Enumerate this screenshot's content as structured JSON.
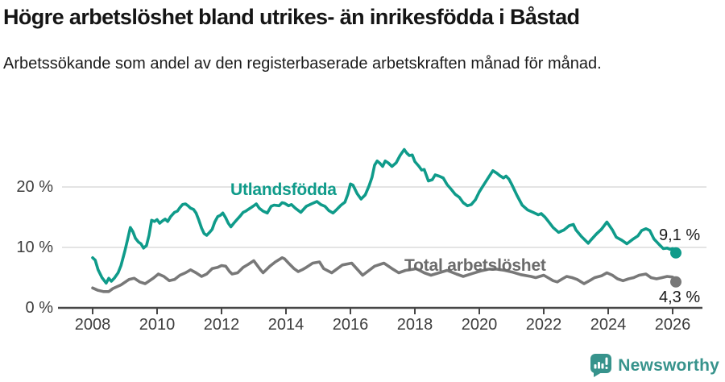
{
  "header": {
    "title": "Högre arbetslöshet bland utrikes- än inrikesfödda i Båstad",
    "subtitle": "Arbetssökande som andel av den registerbaserade arbetskraften månad för månad."
  },
  "footer": {
    "brand": "Newsworthy"
  },
  "colors": {
    "teal": "#0f9b8a",
    "gray": "#787878",
    "gray_label": "#6b6b6b",
    "axis": "#474747",
    "grid": "#dcdcdc",
    "text": "#1a1a1a",
    "tick_text": "#3d3d3d",
    "logo_teal": "#37938c"
  },
  "chart_data": {
    "type": "line",
    "title": "Högre arbetslöshet bland utrikes- än inrikesfödda i Båstad",
    "subtitle": "Arbetssökande som andel av den registerbaserade arbetskraften månad för månad.",
    "xlabel": "",
    "ylabel": "",
    "grid": "horizontal",
    "legend_position": "inline-labels",
    "x_axis": {
      "min": 2008,
      "max": 2026.3,
      "ticks": [
        2008,
        2010,
        2012,
        2014,
        2016,
        2018,
        2020,
        2022,
        2024,
        2026
      ]
    },
    "y_axis": {
      "unit": "%",
      "range": [
        0,
        27
      ],
      "ticks": [
        0,
        10,
        20
      ],
      "tick_labels": [
        "0 %",
        "10 %",
        "20 %"
      ]
    },
    "series": [
      {
        "name": "Utlandsfödda",
        "label_text": "Utlandsfödda",
        "color": "#0f9b8a",
        "end_label": "9,1 %",
        "end_value": 9.1,
        "points": [
          [
            2008.0,
            8.3
          ],
          [
            2008.08,
            7.9
          ],
          [
            2008.17,
            6.3
          ],
          [
            2008.29,
            5.0
          ],
          [
            2008.42,
            4.1
          ],
          [
            2008.5,
            4.9
          ],
          [
            2008.58,
            4.4
          ],
          [
            2008.67,
            4.9
          ],
          [
            2008.79,
            5.8
          ],
          [
            2008.88,
            7.0
          ],
          [
            2009.0,
            9.4
          ],
          [
            2009.08,
            11.2
          ],
          [
            2009.17,
            13.3
          ],
          [
            2009.25,
            12.6
          ],
          [
            2009.33,
            11.5
          ],
          [
            2009.42,
            10.9
          ],
          [
            2009.5,
            10.6
          ],
          [
            2009.58,
            9.9
          ],
          [
            2009.67,
            10.3
          ],
          [
            2009.75,
            12.0
          ],
          [
            2009.83,
            14.5
          ],
          [
            2009.92,
            14.3
          ],
          [
            2010.0,
            14.6
          ],
          [
            2010.08,
            14.0
          ],
          [
            2010.17,
            14.4
          ],
          [
            2010.25,
            14.7
          ],
          [
            2010.33,
            14.3
          ],
          [
            2010.42,
            15.1
          ],
          [
            2010.54,
            15.8
          ],
          [
            2010.63,
            16.0
          ],
          [
            2010.71,
            16.6
          ],
          [
            2010.79,
            17.1
          ],
          [
            2010.88,
            17.2
          ],
          [
            2010.96,
            16.9
          ],
          [
            2011.04,
            16.5
          ],
          [
            2011.13,
            16.3
          ],
          [
            2011.21,
            15.7
          ],
          [
            2011.29,
            14.6
          ],
          [
            2011.38,
            13.2
          ],
          [
            2011.46,
            12.3
          ],
          [
            2011.54,
            12.0
          ],
          [
            2011.63,
            12.5
          ],
          [
            2011.71,
            13.0
          ],
          [
            2011.79,
            14.2
          ],
          [
            2011.88,
            15.1
          ],
          [
            2011.96,
            15.3
          ],
          [
            2012.04,
            15.7
          ],
          [
            2012.13,
            14.9
          ],
          [
            2012.21,
            14.0
          ],
          [
            2012.29,
            13.4
          ],
          [
            2012.38,
            14.0
          ],
          [
            2012.46,
            14.5
          ],
          [
            2012.58,
            15.2
          ],
          [
            2012.67,
            15.8
          ],
          [
            2012.75,
            16.0
          ],
          [
            2012.83,
            16.3
          ],
          [
            2012.92,
            16.6
          ],
          [
            2013.0,
            16.9
          ],
          [
            2013.08,
            17.2
          ],
          [
            2013.17,
            16.5
          ],
          [
            2013.29,
            16.0
          ],
          [
            2013.42,
            15.7
          ],
          [
            2013.54,
            16.8
          ],
          [
            2013.63,
            17.0
          ],
          [
            2013.79,
            16.9
          ],
          [
            2013.88,
            17.4
          ],
          [
            2013.96,
            17.3
          ],
          [
            2014.08,
            16.9
          ],
          [
            2014.17,
            17.1
          ],
          [
            2014.29,
            16.5
          ],
          [
            2014.46,
            15.8
          ],
          [
            2014.63,
            16.8
          ],
          [
            2014.79,
            17.2
          ],
          [
            2014.96,
            17.6
          ],
          [
            2015.08,
            17.1
          ],
          [
            2015.21,
            16.8
          ],
          [
            2015.33,
            16.1
          ],
          [
            2015.46,
            15.7
          ],
          [
            2015.58,
            16.3
          ],
          [
            2015.71,
            17.0
          ],
          [
            2015.83,
            17.5
          ],
          [
            2015.92,
            18.8
          ],
          [
            2016.0,
            20.5
          ],
          [
            2016.08,
            20.3
          ],
          [
            2016.21,
            18.9
          ],
          [
            2016.33,
            18.0
          ],
          [
            2016.46,
            18.7
          ],
          [
            2016.58,
            20.2
          ],
          [
            2016.67,
            21.6
          ],
          [
            2016.75,
            23.6
          ],
          [
            2016.83,
            24.3
          ],
          [
            2016.92,
            23.9
          ],
          [
            2017.0,
            23.4
          ],
          [
            2017.08,
            24.3
          ],
          [
            2017.17,
            24.0
          ],
          [
            2017.29,
            23.4
          ],
          [
            2017.42,
            24.0
          ],
          [
            2017.54,
            25.2
          ],
          [
            2017.67,
            26.2
          ],
          [
            2017.75,
            25.6
          ],
          [
            2017.83,
            25.2
          ],
          [
            2017.92,
            25.3
          ],
          [
            2018.0,
            24.2
          ],
          [
            2018.13,
            23.4
          ],
          [
            2018.21,
            22.8
          ],
          [
            2018.29,
            22.9
          ],
          [
            2018.42,
            21.0
          ],
          [
            2018.54,
            21.2
          ],
          [
            2018.63,
            22.0
          ],
          [
            2018.75,
            21.8
          ],
          [
            2018.88,
            21.5
          ],
          [
            2019.0,
            20.4
          ],
          [
            2019.13,
            19.6
          ],
          [
            2019.25,
            18.8
          ],
          [
            2019.38,
            18.3
          ],
          [
            2019.5,
            17.4
          ],
          [
            2019.63,
            16.9
          ],
          [
            2019.75,
            17.1
          ],
          [
            2019.88,
            17.9
          ],
          [
            2020.0,
            19.2
          ],
          [
            2020.13,
            20.3
          ],
          [
            2020.25,
            21.3
          ],
          [
            2020.42,
            22.7
          ],
          [
            2020.54,
            22.3
          ],
          [
            2020.63,
            21.9
          ],
          [
            2020.75,
            21.5
          ],
          [
            2020.83,
            21.8
          ],
          [
            2020.92,
            21.3
          ],
          [
            2021.0,
            20.5
          ],
          [
            2021.17,
            18.6
          ],
          [
            2021.33,
            17.0
          ],
          [
            2021.5,
            16.2
          ],
          [
            2021.67,
            15.8
          ],
          [
            2021.83,
            15.4
          ],
          [
            2021.92,
            15.6
          ],
          [
            2022.04,
            15.0
          ],
          [
            2022.13,
            14.4
          ],
          [
            2022.29,
            13.3
          ],
          [
            2022.46,
            12.5
          ],
          [
            2022.63,
            12.9
          ],
          [
            2022.79,
            13.6
          ],
          [
            2022.92,
            13.8
          ],
          [
            2023.0,
            12.9
          ],
          [
            2023.17,
            11.8
          ],
          [
            2023.38,
            10.7
          ],
          [
            2023.46,
            11.2
          ],
          [
            2023.63,
            12.2
          ],
          [
            2023.79,
            13.0
          ],
          [
            2023.96,
            14.2
          ],
          [
            2024.13,
            12.9
          ],
          [
            2024.25,
            11.7
          ],
          [
            2024.42,
            11.2
          ],
          [
            2024.58,
            10.6
          ],
          [
            2024.75,
            11.3
          ],
          [
            2024.92,
            11.9
          ],
          [
            2025.04,
            12.8
          ],
          [
            2025.17,
            13.1
          ],
          [
            2025.29,
            12.8
          ],
          [
            2025.42,
            11.4
          ],
          [
            2025.58,
            10.5
          ],
          [
            2025.71,
            9.8
          ],
          [
            2025.83,
            9.9
          ],
          [
            2025.92,
            9.7
          ],
          [
            2026.0,
            9.8
          ],
          [
            2026.1,
            9.1
          ]
        ]
      },
      {
        "name": "Total arbetslöshet",
        "label_text": "Total arbetslöshet",
        "color": "#787878",
        "end_label": "4,3 %",
        "end_value": 4.3,
        "points": [
          [
            2008.0,
            3.3
          ],
          [
            2008.17,
            2.9
          ],
          [
            2008.33,
            2.7
          ],
          [
            2008.5,
            2.7
          ],
          [
            2008.63,
            3.2
          ],
          [
            2008.88,
            3.8
          ],
          [
            2009.13,
            4.7
          ],
          [
            2009.29,
            4.9
          ],
          [
            2009.46,
            4.3
          ],
          [
            2009.63,
            4.0
          ],
          [
            2009.88,
            4.9
          ],
          [
            2010.04,
            5.6
          ],
          [
            2010.21,
            5.2
          ],
          [
            2010.38,
            4.5
          ],
          [
            2010.54,
            4.7
          ],
          [
            2010.71,
            5.4
          ],
          [
            2010.88,
            5.8
          ],
          [
            2011.04,
            6.3
          ],
          [
            2011.21,
            5.8
          ],
          [
            2011.38,
            5.2
          ],
          [
            2011.54,
            5.6
          ],
          [
            2011.71,
            6.5
          ],
          [
            2011.88,
            6.7
          ],
          [
            2012.0,
            7.0
          ],
          [
            2012.13,
            6.9
          ],
          [
            2012.25,
            6.0
          ],
          [
            2012.33,
            5.6
          ],
          [
            2012.5,
            5.8
          ],
          [
            2012.67,
            6.7
          ],
          [
            2012.83,
            7.2
          ],
          [
            2013.0,
            7.8
          ],
          [
            2013.21,
            6.3
          ],
          [
            2013.29,
            5.8
          ],
          [
            2013.5,
            6.9
          ],
          [
            2013.67,
            7.6
          ],
          [
            2013.88,
            8.3
          ],
          [
            2013.96,
            8.1
          ],
          [
            2014.08,
            7.4
          ],
          [
            2014.25,
            6.5
          ],
          [
            2014.38,
            6.0
          ],
          [
            2014.5,
            6.3
          ],
          [
            2014.63,
            6.7
          ],
          [
            2014.83,
            7.4
          ],
          [
            2015.04,
            7.6
          ],
          [
            2015.17,
            6.5
          ],
          [
            2015.42,
            5.8
          ],
          [
            2015.75,
            7.1
          ],
          [
            2016.04,
            7.4
          ],
          [
            2016.21,
            6.4
          ],
          [
            2016.38,
            5.4
          ],
          [
            2016.75,
            6.9
          ],
          [
            2017.04,
            7.4
          ],
          [
            2017.29,
            6.5
          ],
          [
            2017.5,
            5.8
          ],
          [
            2017.71,
            6.2
          ],
          [
            2017.96,
            6.4
          ],
          [
            2018.04,
            6.5
          ],
          [
            2018.29,
            5.8
          ],
          [
            2018.5,
            5.4
          ],
          [
            2018.75,
            5.8
          ],
          [
            2019.0,
            6.2
          ],
          [
            2019.29,
            5.6
          ],
          [
            2019.5,
            5.2
          ],
          [
            2019.79,
            5.7
          ],
          [
            2020.04,
            6.1
          ],
          [
            2020.29,
            6.4
          ],
          [
            2020.54,
            6.4
          ],
          [
            2020.79,
            6.2
          ],
          [
            2021.04,
            5.9
          ],
          [
            2021.29,
            5.5
          ],
          [
            2021.6,
            5.2
          ],
          [
            2021.75,
            5.0
          ],
          [
            2022.0,
            5.4
          ],
          [
            2022.13,
            5.0
          ],
          [
            2022.29,
            4.5
          ],
          [
            2022.42,
            4.3
          ],
          [
            2022.58,
            4.8
          ],
          [
            2022.71,
            5.2
          ],
          [
            2022.88,
            5.0
          ],
          [
            2023.04,
            4.7
          ],
          [
            2023.25,
            4.0
          ],
          [
            2023.42,
            4.5
          ],
          [
            2023.58,
            5.0
          ],
          [
            2023.79,
            5.3
          ],
          [
            2023.96,
            5.8
          ],
          [
            2024.13,
            5.4
          ],
          [
            2024.29,
            4.8
          ],
          [
            2024.46,
            4.5
          ],
          [
            2024.63,
            4.8
          ],
          [
            2024.79,
            5.0
          ],
          [
            2024.96,
            5.4
          ],
          [
            2025.17,
            5.6
          ],
          [
            2025.33,
            5.0
          ],
          [
            2025.5,
            4.8
          ],
          [
            2025.67,
            5.0
          ],
          [
            2025.83,
            5.2
          ],
          [
            2026.0,
            5.1
          ],
          [
            2026.1,
            4.3
          ]
        ]
      }
    ]
  }
}
